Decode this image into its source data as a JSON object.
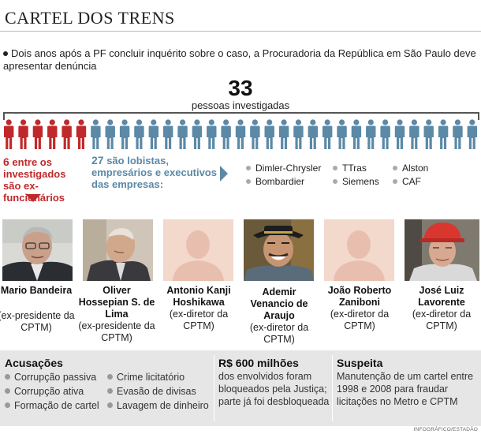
{
  "header": {
    "title": "CARTEL DOS TRENS"
  },
  "intro": {
    "text": "Dois anos após a PF concluir inquérito sobre o caso, a Procuradoria da República em São Paulo deve apresentar denúncia"
  },
  "summary": {
    "total": "33",
    "total_label": "pessoas investigadas",
    "red_count": 6,
    "blue_count": 27,
    "red_color": "#c0292b",
    "blue_color": "#5b89a6"
  },
  "groups": {
    "red": {
      "number": "6",
      "text": " entre os investigados são ex-funcionários"
    },
    "blue": {
      "number": "27",
      "text": " são lobistas, empresários e executivos das empresas:"
    }
  },
  "companies": [
    "Dimler-Chrysler",
    "TTras",
    "Alston",
    "Bombardier",
    "Siemens",
    "CAF"
  ],
  "people": [
    {
      "name": "Mario Bandeira",
      "role": "(ex-presidente da CPTM)",
      "photo": "portrait"
    },
    {
      "name": "Oliver Hossepian S. de Lima",
      "role": "(ex-presidente da CPTM)",
      "photo": "portrait"
    },
    {
      "name": "Antonio Kanji Hoshikawa",
      "role": "(ex-diretor da CPTM)",
      "photo": "placeholder"
    },
    {
      "name": "Ademir Venancio de Araujo",
      "role": "(ex-diretor da CPTM)",
      "photo": "portrait"
    },
    {
      "name": "João Roberto Zaniboni",
      "role": "(ex-diretor da CPTM)",
      "photo": "placeholder"
    },
    {
      "name": "José Luiz Lavorente",
      "role": "(ex-diretor da CPTM)",
      "photo": "portrait"
    }
  ],
  "accusations": {
    "title": "Acusações",
    "items": [
      "Corrupção passiva",
      "Corrupção ativa",
      "Formação de cartel",
      "Crime licitatório",
      "Evasão de divisas",
      "Lavagem de dinheiro"
    ]
  },
  "money": {
    "title": "R$ 600 milhões",
    "text": "dos envolvidos foram bloqueados pela Justiça; parte já foi desbloqueada"
  },
  "suspicion": {
    "title": "Suspeita",
    "text": "Manutenção de um cartel entre 1998 e 2008 para fraudar licitações no Metro e CPTM"
  },
  "credit": "INFOGRÁFICO/ESTADÃO"
}
